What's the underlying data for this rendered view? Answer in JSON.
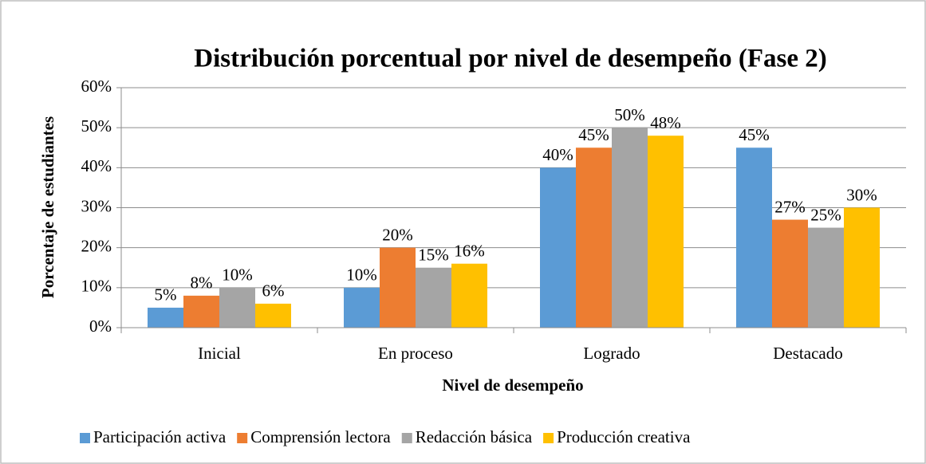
{
  "chart_data": {
    "type": "bar",
    "title": "Distribución porcentual por nivel de desempeño (Fase 2)",
    "x_label": "Nivel de desempeño",
    "y_label": "Porcentaje de estudiantes",
    "categories": [
      "Inicial",
      "En proceso",
      "Logrado",
      "Destacado"
    ],
    "series": [
      {
        "name": "Participación activa",
        "color": "#5b9bd5",
        "values": [
          5,
          10,
          40,
          45
        ],
        "value_labels": [
          "5%",
          "10%",
          "40%",
          "45%"
        ]
      },
      {
        "name": "Comprensión lectora",
        "color": "#ed7d31",
        "values": [
          8,
          20,
          45,
          27
        ],
        "value_labels": [
          "8%",
          "20%",
          "45%",
          "27%"
        ]
      },
      {
        "name": "Redacción básica",
        "color": "#a5a5a5",
        "values": [
          10,
          15,
          50,
          25
        ],
        "value_labels": [
          "10%",
          "15%",
          "50%",
          "25%"
        ]
      },
      {
        "name": "Producción creativa",
        "color": "#ffc000",
        "values": [
          6,
          16,
          48,
          30
        ],
        "value_labels": [
          "6%",
          "16%",
          "48%",
          "30%"
        ]
      }
    ],
    "ylim": [
      0,
      60
    ],
    "yticks": [
      {
        "value": 0,
        "label": "0%"
      },
      {
        "value": 10,
        "label": "10%"
      },
      {
        "value": 20,
        "label": "20%"
      },
      {
        "value": 30,
        "label": "30%"
      },
      {
        "value": 40,
        "label": "40%"
      },
      {
        "value": 50,
        "label": "50%"
      },
      {
        "value": 60,
        "label": "60%"
      }
    ],
    "grid": true,
    "legend": "bottom"
  }
}
